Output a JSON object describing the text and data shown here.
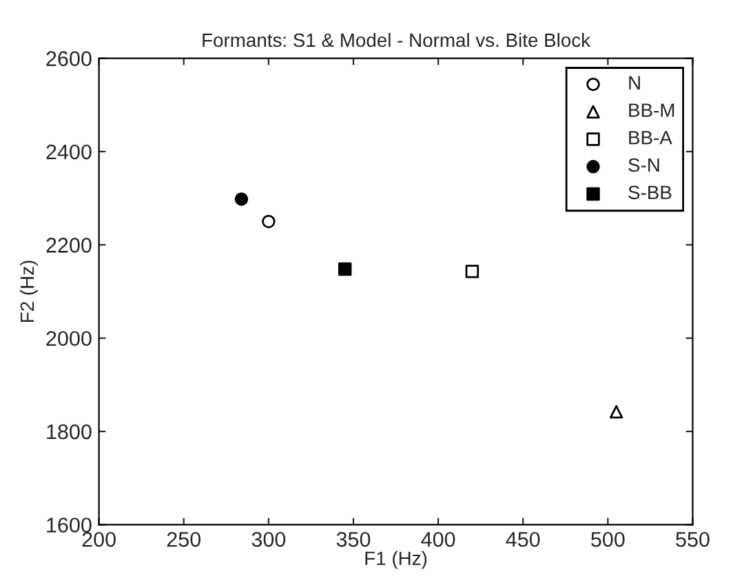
{
  "chart_data": {
    "type": "scatter",
    "title": "Formants: S1 & Model - Normal vs. Bite Block",
    "xlabel": "F1 (Hz)",
    "ylabel": "F2 (Hz)",
    "xlim": [
      200,
      550
    ],
    "xticks": [
      200,
      250,
      300,
      350,
      400,
      450,
      500,
      550
    ],
    "ylim": [
      1600,
      2600
    ],
    "yticks": [
      1600,
      1800,
      2000,
      2200,
      2400,
      2600
    ],
    "grid": false,
    "legend": "top right",
    "series": [
      {
        "name": "N",
        "color": "#000000",
        "marker": "circle",
        "colors": [
          "#ffffff"
        ],
        "x": [
          300
        ],
        "values": [
          2250
        ]
      },
      {
        "name": "BB-M",
        "color": "#000000",
        "marker": "triangle",
        "colors": [
          "#ffffff"
        ],
        "x": [
          505
        ],
        "values": [
          1842
        ]
      },
      {
        "name": "BB-A",
        "color": "#000000",
        "marker": "square",
        "colors": [
          "#ffffff"
        ],
        "x": [
          420
        ],
        "values": [
          2143
        ]
      },
      {
        "name": "S-N",
        "color": "#000000",
        "marker": "circle",
        "x": [
          284
        ],
        "values": [
          2298
        ]
      },
      {
        "name": "S-BB",
        "color": "#000000",
        "marker": "square",
        "x": [
          345
        ],
        "values": [
          2148
        ]
      }
    ]
  }
}
